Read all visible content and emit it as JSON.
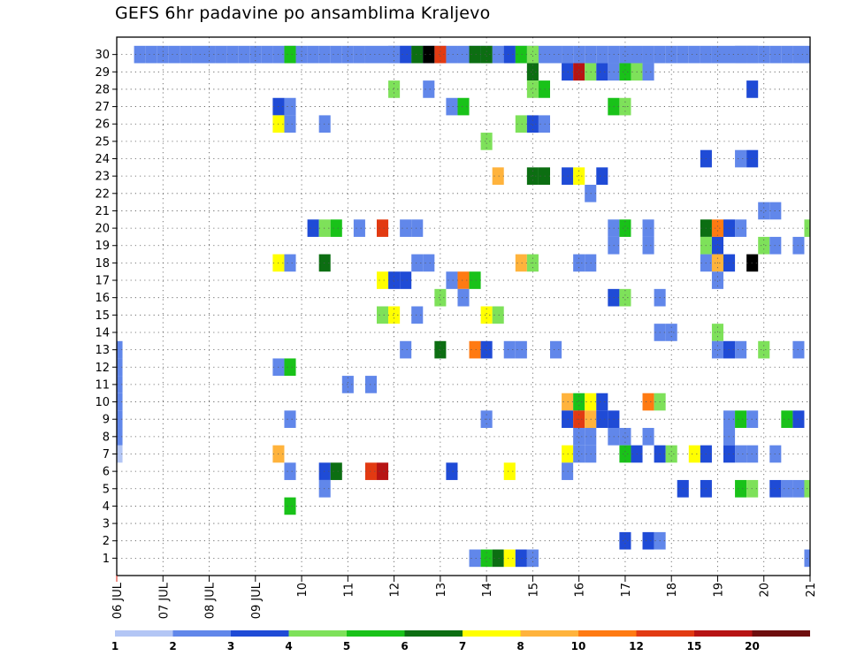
{
  "chart_data": {
    "type": "heatmap",
    "title": "GEFS 6hr padavine po ansamblima Kraljevo",
    "y_labels": [
      "1",
      "2",
      "3",
      "4",
      "5",
      "6",
      "7",
      "8",
      "9",
      "10",
      "11",
      "12",
      "13",
      "14",
      "15",
      "16",
      "17",
      "18",
      "19",
      "20",
      "21",
      "22",
      "23",
      "24",
      "25",
      "26",
      "27",
      "28",
      "29",
      "30"
    ],
    "ylim": [
      0,
      30
    ],
    "x_labels": [
      "06 JUL",
      "07 JUL",
      "08 JUL",
      "09 JUL",
      "10",
      "11",
      "12",
      "13",
      "14",
      "15",
      "16",
      "17",
      "18",
      "19",
      "20",
      "21"
    ],
    "x_step": "6 h",
    "grid": true,
    "legend_placement": "bottom",
    "legend": {
      "levels": [
        "1",
        "2",
        "3",
        "4",
        "5",
        "6",
        "7",
        "8",
        "10",
        "12",
        "15",
        "20"
      ],
      "colors": [
        "#b3c6f5",
        "#6187ea",
        "#1f4bd6",
        "#7ee15a",
        "#19c219",
        "#0c6e12",
        "#ffff00",
        "#ffb33c",
        "#ff7a12",
        "#e23a12",
        "#b71414",
        "#6e0e0e"
      ]
    },
    "cells": [
      [
        0,
        7,
        0
      ],
      [
        0,
        8,
        1
      ],
      [
        0,
        9,
        1
      ],
      [
        0,
        10,
        1
      ],
      [
        0,
        11,
        1
      ],
      [
        0,
        12,
        1
      ],
      [
        0,
        13,
        1
      ],
      [
        2,
        30,
        1
      ],
      [
        3,
        30,
        1
      ],
      [
        4,
        30,
        1
      ],
      [
        5,
        30,
        1
      ],
      [
        6,
        30,
        1
      ],
      [
        7,
        30,
        1
      ],
      [
        8,
        30,
        1
      ],
      [
        9,
        30,
        1
      ],
      [
        10,
        30,
        1
      ],
      [
        11,
        30,
        1
      ],
      [
        12,
        30,
        1
      ],
      [
        13,
        30,
        1
      ],
      [
        14,
        30,
        1
      ],
      [
        15,
        30,
        1
      ],
      [
        16,
        30,
        1
      ],
      [
        17,
        30,
        1
      ],
      [
        18,
        30,
        1
      ],
      [
        19,
        30,
        1
      ],
      [
        20,
        30,
        1
      ],
      [
        21,
        30,
        1
      ],
      [
        22,
        30,
        1
      ],
      [
        23,
        30,
        1
      ],
      [
        24,
        30,
        1
      ],
      [
        25,
        30,
        1
      ],
      [
        26,
        30,
        1
      ],
      [
        27,
        30,
        1
      ],
      [
        28,
        30,
        1
      ],
      [
        29,
        30,
        1
      ],
      [
        30,
        30,
        1
      ],
      [
        31,
        30,
        1
      ],
      [
        32,
        30,
        1
      ],
      [
        33,
        30,
        1
      ],
      [
        34,
        30,
        1
      ],
      [
        35,
        30,
        1
      ],
      [
        36,
        30,
        1
      ],
      [
        37,
        30,
        1
      ],
      [
        38,
        30,
        1
      ],
      [
        39,
        30,
        1
      ],
      [
        40,
        30,
        1
      ],
      [
        41,
        30,
        1
      ],
      [
        42,
        30,
        1
      ],
      [
        43,
        30,
        1
      ],
      [
        44,
        30,
        1
      ],
      [
        45,
        30,
        1
      ],
      [
        46,
        30,
        1
      ],
      [
        47,
        30,
        1
      ],
      [
        48,
        30,
        1
      ],
      [
        49,
        30,
        1
      ],
      [
        50,
        30,
        1
      ],
      [
        51,
        30,
        1
      ],
      [
        52,
        30,
        1
      ],
      [
        53,
        30,
        1
      ],
      [
        54,
        30,
        1
      ],
      [
        55,
        30,
        1
      ],
      [
        56,
        30,
        1
      ],
      [
        57,
        30,
        1
      ],
      [
        58,
        30,
        1
      ],
      [
        59,
        30,
        1
      ],
      [
        60,
        30,
        1
      ],
      [
        15,
        30,
        4
      ],
      [
        24,
        30,
        1
      ],
      [
        25,
        30,
        2
      ],
      [
        26,
        30,
        5
      ],
      [
        27,
        30,
        12
      ],
      [
        28,
        30,
        9
      ],
      [
        31,
        30,
        5
      ],
      [
        32,
        30,
        5
      ],
      [
        34,
        30,
        2
      ],
      [
        35,
        30,
        4
      ],
      [
        36,
        30,
        3
      ],
      [
        54,
        30,
        1
      ],
      [
        55,
        30,
        1
      ],
      [
        36,
        29,
        5
      ],
      [
        39,
        29,
        2
      ],
      [
        40,
        29,
        10
      ],
      [
        41,
        29,
        3
      ],
      [
        42,
        29,
        2
      ],
      [
        43,
        29,
        1
      ],
      [
        44,
        29,
        4
      ],
      [
        45,
        29,
        3
      ],
      [
        46,
        29,
        1
      ],
      [
        24,
        28,
        3
      ],
      [
        27,
        28,
        1
      ],
      [
        36,
        28,
        3
      ],
      [
        37,
        28,
        4
      ],
      [
        55,
        28,
        2
      ],
      [
        14,
        27,
        2
      ],
      [
        15,
        27,
        1
      ],
      [
        29,
        27,
        1
      ],
      [
        30,
        27,
        4
      ],
      [
        43,
        27,
        4
      ],
      [
        44,
        27,
        3
      ],
      [
        14,
        26,
        6
      ],
      [
        15,
        26,
        1
      ],
      [
        18,
        26,
        1
      ],
      [
        35,
        26,
        3
      ],
      [
        36,
        26,
        2
      ],
      [
        37,
        26,
        1
      ],
      [
        32,
        25,
        3
      ],
      [
        51,
        24,
        2
      ],
      [
        54,
        24,
        1
      ],
      [
        55,
        24,
        2
      ],
      [
        33,
        23,
        7
      ],
      [
        36,
        23,
        5
      ],
      [
        37,
        23,
        5
      ],
      [
        39,
        23,
        2
      ],
      [
        40,
        23,
        6
      ],
      [
        42,
        23,
        2
      ],
      [
        41,
        22,
        1
      ],
      [
        56,
        21,
        1
      ],
      [
        57,
        21,
        1
      ],
      [
        17,
        20,
        2
      ],
      [
        18,
        20,
        3
      ],
      [
        19,
        20,
        4
      ],
      [
        21,
        20,
        1
      ],
      [
        23,
        20,
        9
      ],
      [
        25,
        20,
        1
      ],
      [
        26,
        20,
        1
      ],
      [
        43,
        20,
        1
      ],
      [
        44,
        20,
        4
      ],
      [
        46,
        20,
        1
      ],
      [
        51,
        20,
        5
      ],
      [
        52,
        20,
        8
      ],
      [
        53,
        20,
        2
      ],
      [
        54,
        20,
        1
      ],
      [
        60,
        20,
        3
      ],
      [
        43,
        19,
        1
      ],
      [
        46,
        19,
        1
      ],
      [
        51,
        19,
        3
      ],
      [
        52,
        19,
        2
      ],
      [
        56,
        19,
        3
      ],
      [
        57,
        19,
        1
      ],
      [
        59,
        19,
        1
      ],
      [
        14,
        18,
        6
      ],
      [
        15,
        18,
        1
      ],
      [
        18,
        18,
        5
      ],
      [
        26,
        18,
        1
      ],
      [
        27,
        18,
        1
      ],
      [
        35,
        18,
        7
      ],
      [
        36,
        18,
        3
      ],
      [
        40,
        18,
        1
      ],
      [
        41,
        18,
        1
      ],
      [
        51,
        18,
        1
      ],
      [
        52,
        18,
        7
      ],
      [
        53,
        18,
        2
      ],
      [
        55,
        18,
        12
      ],
      [
        23,
        17,
        6
      ],
      [
        24,
        17,
        2
      ],
      [
        25,
        17,
        2
      ],
      [
        29,
        17,
        1
      ],
      [
        30,
        17,
        8
      ],
      [
        31,
        17,
        4
      ],
      [
        52,
        17,
        1
      ],
      [
        28,
        16,
        3
      ],
      [
        30,
        16,
        1
      ],
      [
        43,
        16,
        2
      ],
      [
        44,
        16,
        3
      ],
      [
        47,
        16,
        1
      ],
      [
        23,
        15,
        3
      ],
      [
        24,
        15,
        6
      ],
      [
        26,
        15,
        1
      ],
      [
        32,
        15,
        6
      ],
      [
        33,
        15,
        3
      ],
      [
        47,
        14,
        1
      ],
      [
        48,
        14,
        1
      ],
      [
        52,
        14,
        3
      ],
      [
        25,
        13,
        1
      ],
      [
        28,
        13,
        5
      ],
      [
        31,
        13,
        8
      ],
      [
        32,
        13,
        2
      ],
      [
        34,
        13,
        1
      ],
      [
        35,
        13,
        1
      ],
      [
        38,
        13,
        1
      ],
      [
        52,
        13,
        1
      ],
      [
        53,
        13,
        2
      ],
      [
        54,
        13,
        1
      ],
      [
        56,
        13,
        3
      ],
      [
        59,
        13,
        1
      ],
      [
        14,
        12,
        1
      ],
      [
        15,
        12,
        4
      ],
      [
        20,
        11,
        1
      ],
      [
        22,
        11,
        1
      ],
      [
        39,
        10,
        7
      ],
      [
        40,
        10,
        4
      ],
      [
        41,
        10,
        6
      ],
      [
        42,
        10,
        2
      ],
      [
        46,
        10,
        8
      ],
      [
        47,
        10,
        3
      ],
      [
        15,
        9,
        1
      ],
      [
        32,
        9,
        1
      ],
      [
        39,
        9,
        2
      ],
      [
        40,
        9,
        9
      ],
      [
        41,
        9,
        7
      ],
      [
        42,
        9,
        2
      ],
      [
        43,
        9,
        2
      ],
      [
        53,
        9,
        1
      ],
      [
        54,
        9,
        4
      ],
      [
        55,
        9,
        1
      ],
      [
        58,
        9,
        4
      ],
      [
        59,
        9,
        2
      ],
      [
        40,
        8,
        1
      ],
      [
        41,
        8,
        1
      ],
      [
        43,
        8,
        1
      ],
      [
        44,
        8,
        1
      ],
      [
        46,
        8,
        1
      ],
      [
        53,
        8,
        1
      ],
      [
        14,
        7,
        7
      ],
      [
        39,
        7,
        6
      ],
      [
        40,
        7,
        1
      ],
      [
        41,
        7,
        1
      ],
      [
        44,
        7,
        4
      ],
      [
        45,
        7,
        2
      ],
      [
        47,
        7,
        2
      ],
      [
        48,
        7,
        3
      ],
      [
        50,
        7,
        6
      ],
      [
        51,
        7,
        2
      ],
      [
        53,
        7,
        2
      ],
      [
        54,
        7,
        1
      ],
      [
        55,
        7,
        1
      ],
      [
        57,
        7,
        1
      ],
      [
        15,
        6,
        1
      ],
      [
        18,
        6,
        2
      ],
      [
        19,
        6,
        5
      ],
      [
        22,
        6,
        9
      ],
      [
        23,
        6,
        10
      ],
      [
        29,
        6,
        2
      ],
      [
        34,
        6,
        6
      ],
      [
        39,
        6,
        1
      ],
      [
        18,
        5,
        1
      ],
      [
        49,
        5,
        2
      ],
      [
        51,
        5,
        2
      ],
      [
        54,
        5,
        4
      ],
      [
        55,
        5,
        3
      ],
      [
        57,
        5,
        2
      ],
      [
        58,
        5,
        1
      ],
      [
        59,
        5,
        1
      ],
      [
        60,
        5,
        3
      ],
      [
        15,
        4,
        4
      ],
      [
        44,
        2,
        2
      ],
      [
        46,
        2,
        2
      ],
      [
        47,
        2,
        1
      ],
      [
        31,
        1,
        1
      ],
      [
        32,
        1,
        4
      ],
      [
        33,
        1,
        5
      ],
      [
        34,
        1,
        6
      ],
      [
        35,
        1,
        2
      ],
      [
        36,
        1,
        1
      ],
      [
        60,
        1,
        1
      ]
    ],
    "cells_format": "[time_index (6h steps from 06 JUL 00Z), member, level_index (0-11 into legend)]"
  }
}
